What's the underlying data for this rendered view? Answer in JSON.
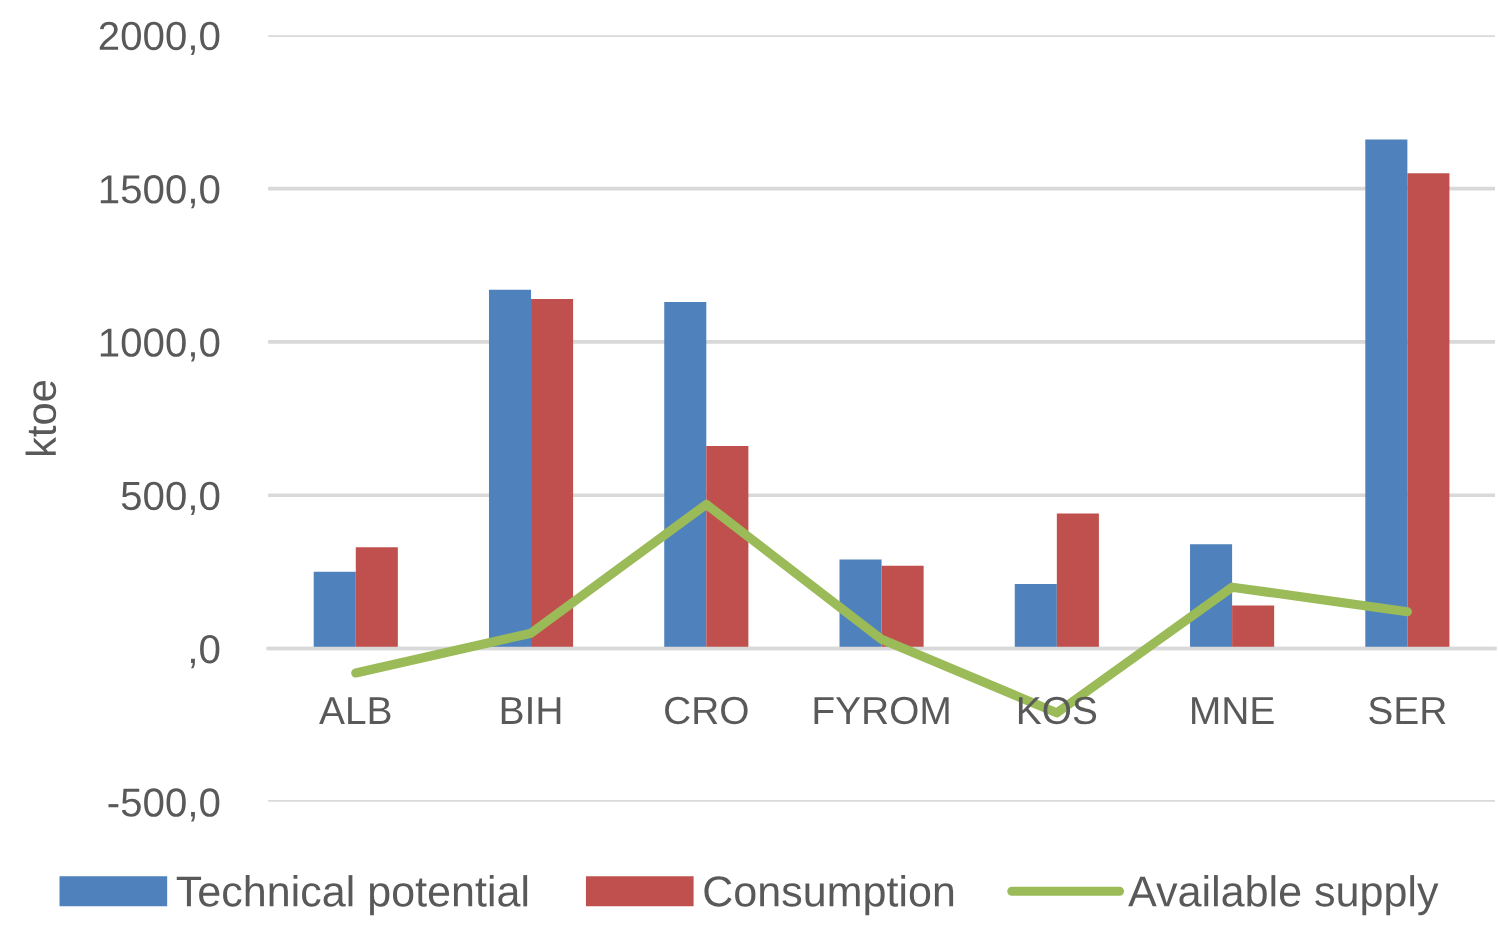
{
  "chart_data": {
    "type": "bar",
    "ylabel": "ktoe",
    "categories": [
      "ALB",
      "BIH",
      "CRO",
      "FYROM",
      "KOS",
      "MNE",
      "SER"
    ],
    "series": [
      {
        "name": "Technical potential",
        "color": "#4f81bd",
        "values": [
          250,
          1170,
          1130,
          290,
          210,
          340,
          1660
        ]
      },
      {
        "name": "Consumption",
        "color": "#c0504d",
        "values": [
          330,
          1140,
          660,
          270,
          440,
          140,
          1550
        ]
      },
      {
        "name": "Available supply",
        "type": "line",
        "color": "#9bbb59",
        "values": [
          -80,
          50,
          470,
          30,
          -210,
          200,
          120
        ]
      }
    ],
    "ylim": [
      -500,
      2000
    ],
    "yticks": [
      {
        "value": -500,
        "label": "-500,0"
      },
      {
        "value": 0,
        "label": ",0"
      },
      {
        "value": 500,
        "label": "500,0"
      },
      {
        "value": 1000,
        "label": "1000,0"
      },
      {
        "value": 1500,
        "label": "1500,0"
      },
      {
        "value": 2000,
        "label": "2000,0"
      }
    ],
    "grid": "y",
    "legend": "bottom"
  }
}
